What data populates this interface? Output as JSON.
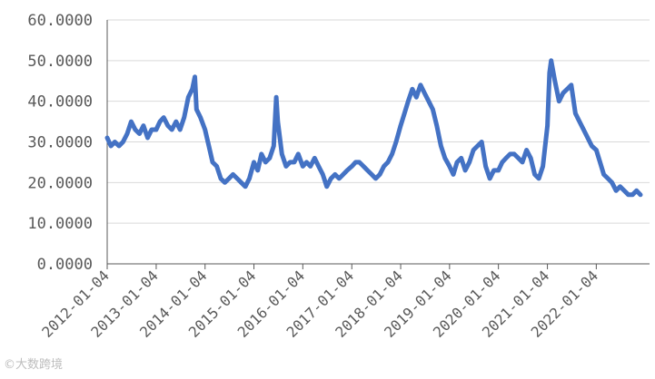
{
  "chart_data": {
    "type": "line",
    "title": "",
    "xlabel": "",
    "ylabel": "",
    "ylim": [
      0,
      60
    ],
    "y_ticks": [
      "0.0000",
      "10.0000",
      "20.0000",
      "30.0000",
      "40.0000",
      "50.0000",
      "60.0000"
    ],
    "x_ticks": [
      "2012-01-04",
      "2013-01-04",
      "2014-01-04",
      "2015-01-04",
      "2016-01-04",
      "2017-01-04",
      "2018-01-04",
      "2019-01-04",
      "2020-01-04",
      "2021-01-04",
      "2022-01-04"
    ],
    "x_range": [
      "2012-01-04",
      "2022-11-30"
    ],
    "grid": "horizontal",
    "legend": "none",
    "line_color": "#4472c4",
    "grid_color": "#d9d9d9",
    "series": [
      {
        "x": [
          "2012-01-04",
          "2012-02-01",
          "2012-03-01",
          "2012-04-01",
          "2012-05-01",
          "2012-06-01",
          "2012-07-01",
          "2012-08-01",
          "2012-09-01",
          "2012-10-01",
          "2012-11-01",
          "2012-12-01",
          "2013-01-04",
          "2013-02-01",
          "2013-03-01",
          "2013-04-01",
          "2013-05-01",
          "2013-06-01",
          "2013-07-01",
          "2013-08-01",
          "2013-09-01",
          "2013-10-01",
          "2013-10-20",
          "2013-11-01",
          "2013-12-01",
          "2014-01-04",
          "2014-02-01",
          "2014-03-01",
          "2014-04-01",
          "2014-05-01",
          "2014-06-01",
          "2014-07-01",
          "2014-08-01",
          "2014-09-01",
          "2014-10-01",
          "2014-11-01",
          "2014-12-01",
          "2015-01-04",
          "2015-02-01",
          "2015-03-01",
          "2015-04-01",
          "2015-05-01",
          "2015-06-01",
          "2015-06-20",
          "2015-07-01",
          "2015-08-01",
          "2015-09-01",
          "2015-10-01",
          "2015-11-01",
          "2015-12-01",
          "2016-01-04",
          "2016-02-01",
          "2016-03-01",
          "2016-04-01",
          "2016-05-01",
          "2016-06-01",
          "2016-07-01",
          "2016-08-01",
          "2016-09-01",
          "2016-10-01",
          "2016-11-01",
          "2016-12-01",
          "2017-01-04",
          "2017-02-01",
          "2017-03-01",
          "2017-04-01",
          "2017-05-01",
          "2017-06-01",
          "2017-07-01",
          "2017-08-01",
          "2017-09-01",
          "2017-10-01",
          "2017-11-01",
          "2017-12-01",
          "2018-01-04",
          "2018-02-01",
          "2018-03-01",
          "2018-04-01",
          "2018-05-01",
          "2018-06-01",
          "2018-07-01",
          "2018-08-01",
          "2018-09-01",
          "2018-10-01",
          "2018-11-01",
          "2018-12-01",
          "2019-01-04",
          "2019-02-01",
          "2019-03-01",
          "2019-04-01",
          "2019-05-01",
          "2019-06-01",
          "2019-07-01",
          "2019-08-01",
          "2019-09-01",
          "2019-10-01",
          "2019-11-01",
          "2019-12-01",
          "2020-01-04",
          "2020-02-01",
          "2020-03-01",
          "2020-04-01",
          "2020-05-01",
          "2020-06-01",
          "2020-07-01",
          "2020-08-01",
          "2020-09-01",
          "2020-10-01",
          "2020-11-01",
          "2020-12-01",
          "2021-01-04",
          "2021-01-20",
          "2021-02-01",
          "2021-03-01",
          "2021-04-01",
          "2021-05-01",
          "2021-06-01",
          "2021-07-01",
          "2021-08-01",
          "2021-09-01",
          "2021-10-01",
          "2021-11-01",
          "2021-12-01",
          "2022-01-04",
          "2022-02-01",
          "2022-03-01",
          "2022-04-01",
          "2022-05-01",
          "2022-06-01",
          "2022-07-01",
          "2022-08-01",
          "2022-09-01",
          "2022-10-01",
          "2022-11-01",
          "2022-11-30"
        ],
        "y": [
          31,
          29,
          30,
          29,
          30,
          32,
          35,
          33,
          32,
          34,
          31,
          33,
          33,
          35,
          36,
          34,
          33,
          35,
          33,
          36,
          41,
          43,
          46,
          38,
          36,
          33,
          29,
          25,
          24,
          21,
          20,
          21,
          22,
          21,
          20,
          19,
          21,
          25,
          23,
          27,
          25,
          26,
          29,
          41,
          35,
          27,
          24,
          25,
          25,
          27,
          24,
          25,
          24,
          26,
          24,
          22,
          19,
          21,
          22,
          21,
          22,
          23,
          24,
          25,
          25,
          24,
          23,
          22,
          21,
          22,
          24,
          25,
          27,
          30,
          34,
          37,
          40,
          43,
          41,
          44,
          42,
          40,
          38,
          34,
          29,
          26,
          24,
          22,
          25,
          26,
          23,
          25,
          28,
          29,
          30,
          24,
          21,
          23,
          23,
          25,
          26,
          27,
          27,
          26,
          25,
          28,
          26,
          22,
          21,
          24,
          34,
          47,
          50,
          45,
          40,
          42,
          43,
          44,
          37,
          35,
          33,
          31,
          29,
          28,
          25,
          22,
          21,
          20,
          18,
          19,
          18,
          17,
          17,
          18,
          17
        ]
      }
    ]
  },
  "watermark": "©大数跨境"
}
